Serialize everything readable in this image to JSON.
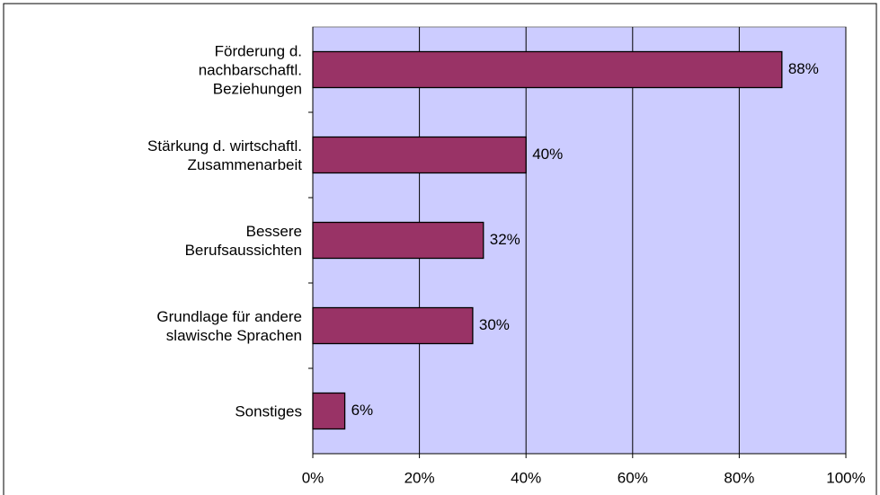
{
  "chart_data": {
    "type": "hbar",
    "categories": [
      "Förderung d.\nnachbarschaftl.\nBeziehungen",
      "Stärkung d. wirtschaftl.\nZusammenarbeit",
      "Bessere\nBerufsaussichten",
      "Grundlage für andere\nslawische Sprachen",
      "Sonstiges"
    ],
    "values": [
      88,
      40,
      32,
      30,
      6
    ],
    "value_labels": [
      "88%",
      "40%",
      "32%",
      "30%",
      "6%"
    ],
    "color": "#993366",
    "plot_background": "#ccccff",
    "xlim": [
      0,
      100
    ],
    "xticks": [
      {
        "value": 0,
        "label": "0%"
      },
      {
        "value": 20,
        "label": "20%"
      },
      {
        "value": 40,
        "label": "40%"
      },
      {
        "value": 60,
        "label": "60%"
      },
      {
        "value": 80,
        "label": "80%"
      },
      {
        "value": 100,
        "label": "100%"
      }
    ],
    "grid": true
  }
}
